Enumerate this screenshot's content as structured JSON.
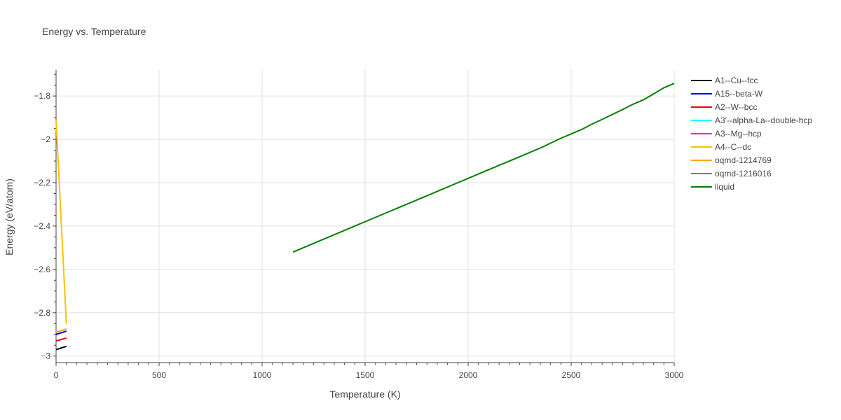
{
  "chart_data": {
    "type": "line",
    "title": "Energy vs. Temperature",
    "xlabel": "Temperature (K)",
    "ylabel": "Energy (eV/atom)",
    "xlim": [
      0,
      3000
    ],
    "ylim": [
      -3.03,
      -1.68
    ],
    "x_ticks": [
      0,
      500,
      1000,
      1500,
      2000,
      2500,
      3000
    ],
    "x_tick_labels": [
      "0",
      "500",
      "1000",
      "1500",
      "2000",
      "2500",
      "3000"
    ],
    "y_ticks": [
      -3.0,
      -2.8,
      -2.6,
      -2.4,
      -2.2,
      -2.0,
      -1.8
    ],
    "y_tick_labels": [
      "−3",
      "−2.8",
      "−2.6",
      "−2.4",
      "−2.2",
      "−2",
      "−1.8"
    ],
    "grid": true,
    "legend_position": "right",
    "series": [
      {
        "name": "A1--Cu--fcc",
        "color": "#000000",
        "x": [
          0,
          50
        ],
        "y": [
          -2.97,
          -2.955
        ]
      },
      {
        "name": "A15--beta-W",
        "color": "#0000ff",
        "x": [
          0,
          50
        ],
        "y": [
          -2.9,
          -2.885
        ]
      },
      {
        "name": "A2--W--bcc",
        "color": "#ff0000",
        "x": [
          0,
          50
        ],
        "y": [
          -2.93,
          -2.917
        ]
      },
      {
        "name": "A3'--alpha-La--double-hcp",
        "color": "#00ffff",
        "x": [],
        "y": []
      },
      {
        "name": "A3--Mg--hcp",
        "color": "#ff00ff",
        "x": [],
        "y": []
      },
      {
        "name": "A4--C--dc",
        "color": "#ffc000",
        "x": [
          0,
          50
        ],
        "y": [
          -1.91,
          -2.85
        ]
      },
      {
        "name": "oqmd-1214769",
        "color": "#ffa500",
        "x": [
          0,
          50
        ],
        "y": [
          -2.89,
          -2.875
        ]
      },
      {
        "name": "oqmd-1216016",
        "color": "#808080",
        "x": [],
        "y": []
      },
      {
        "name": "liquid",
        "color": "#008000",
        "x": [
          1150,
          1250,
          1350,
          1450,
          1550,
          1650,
          1750,
          1850,
          1950,
          2050,
          2150,
          2250,
          2350,
          2450,
          2550,
          2600,
          2650,
          2700,
          2750,
          2800,
          2850,
          2900,
          2950,
          3000
        ],
        "y": [
          -2.52,
          -2.48,
          -2.44,
          -2.4,
          -2.36,
          -2.32,
          -2.28,
          -2.24,
          -2.2,
          -2.16,
          -2.12,
          -2.08,
          -2.04,
          -1.995,
          -1.955,
          -1.93,
          -1.908,
          -1.885,
          -1.862,
          -1.838,
          -1.818,
          -1.79,
          -1.762,
          -1.742
        ]
      }
    ]
  }
}
